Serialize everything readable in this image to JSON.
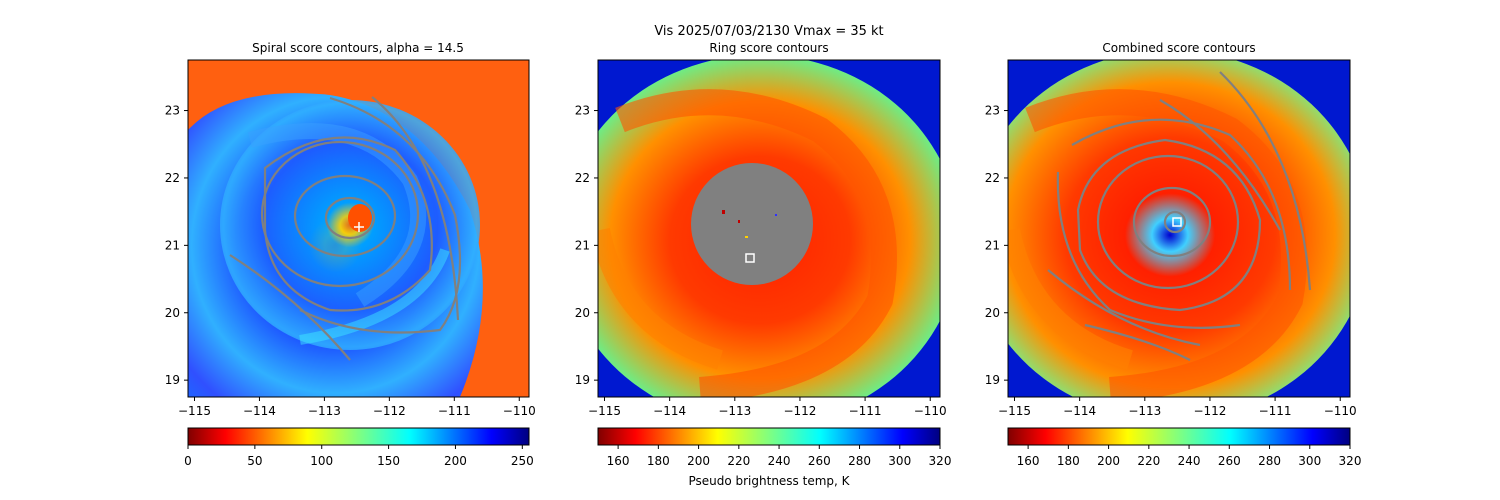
{
  "suptitle": "Vis  2025/07/03/2130    Vmax = 35 kt",
  "cbar_label": "Pseudo brightness temp, K",
  "chart_data": [
    {
      "type": "heatmap",
      "title": "Spiral score contours, alpha = 14.5",
      "xlim": [
        -115.1,
        -109.85
      ],
      "ylim": [
        18.75,
        23.75
      ],
      "xticks": [
        -115,
        -114,
        -113,
        -112,
        -111,
        -110
      ],
      "yticks": [
        19,
        20,
        21,
        22,
        23
      ],
      "colormap": "jet_r",
      "clim": [
        0,
        255
      ],
      "cbar_ticks": [
        0,
        50,
        100,
        150,
        200,
        250
      ],
      "contour_color": "#808080",
      "center_marker": "white-plus",
      "center": [
        -112.55,
        21.35
      ]
    },
    {
      "type": "heatmap",
      "title": "Ring score contours",
      "xlim": [
        -115.1,
        -109.85
      ],
      "ylim": [
        18.75,
        23.75
      ],
      "xticks": [
        -115,
        -114,
        -113,
        -112,
        -111,
        -110
      ],
      "yticks": [
        19,
        20,
        21,
        22,
        23
      ],
      "colormap": "jet_r",
      "clim": [
        150,
        320
      ],
      "cbar_ticks": [
        160,
        180,
        200,
        220,
        240,
        260,
        280,
        300,
        320
      ],
      "gray_disk": {
        "center": [
          -112.5,
          21.45
        ],
        "radius_deg": 0.9,
        "color": "#808080"
      },
      "center_marker": "white-square",
      "center": [
        -112.75,
        20.8
      ]
    },
    {
      "type": "heatmap",
      "title": "Combined score contours",
      "xlim": [
        -115.1,
        -109.85
      ],
      "ylim": [
        18.75,
        23.75
      ],
      "xticks": [
        -115,
        -114,
        -113,
        -112,
        -111,
        -110
      ],
      "yticks": [
        19,
        20,
        21,
        22,
        23
      ],
      "colormap": "jet_r",
      "clim": [
        150,
        320
      ],
      "cbar_ticks": [
        160,
        180,
        200,
        220,
        240,
        260,
        280,
        300,
        320
      ],
      "contour_color": "#808080",
      "center_marker": "white-square",
      "center": [
        -112.5,
        21.35
      ]
    }
  ]
}
